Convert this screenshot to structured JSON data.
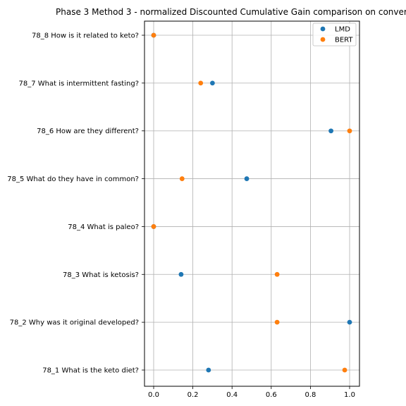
{
  "chart_data": {
    "type": "scatter",
    "title": "Phase 3 Method 3 - normalized Discounted Cumulative Gain comparison on conver",
    "xlabel": "",
    "ylabel": "",
    "xlim": [
      -0.05,
      1.05
    ],
    "xticks": [
      0.0,
      0.2,
      0.4,
      0.6,
      0.8,
      1.0
    ],
    "x_tick_labels": [
      "0.0",
      "0.2",
      "0.4",
      "0.6",
      "0.8",
      "1.0"
    ],
    "grid": true,
    "legend_position": "top-right",
    "categories": [
      "78_1 What is the keto diet?",
      "78_2 Why was it original developed?",
      "78_3 What is ketosis?",
      "78_4 What is paleo?",
      "78_5 What do they have in common?",
      "78_6 How are they different?",
      "78_7 What is intermittent fasting?",
      "78_8 How is it related to keto?"
    ],
    "series": [
      {
        "name": "LMD",
        "color": "#1f77b4",
        "values": [
          0.28,
          1.0,
          0.14,
          0.0,
          0.475,
          0.905,
          0.3,
          0.0
        ]
      },
      {
        "name": "BERT",
        "color": "#ff7f0e",
        "values": [
          0.975,
          0.63,
          0.63,
          0.0,
          0.145,
          1.0,
          0.24,
          0.0
        ]
      }
    ]
  }
}
